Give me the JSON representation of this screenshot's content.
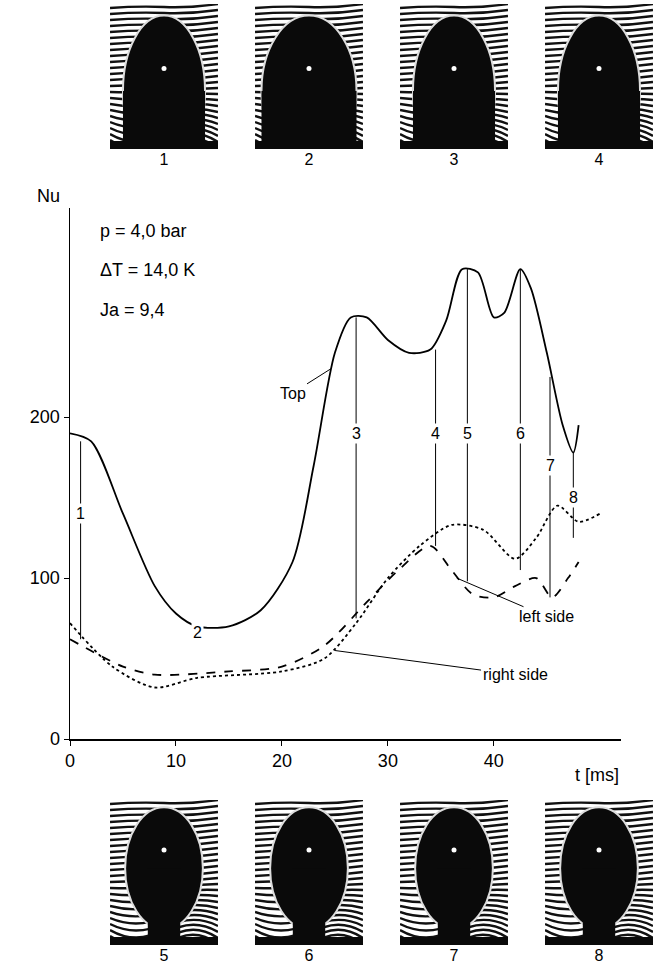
{
  "chart_data": {
    "type": "line",
    "x_label": "t [ms]",
    "y_label": "Nu",
    "annotations": [
      "p = 4,0 bar",
      "ΔT = 14,0 K",
      "Ja = 9,4"
    ],
    "xlim": [
      0,
      52
    ],
    "ylim": [
      0,
      330
    ],
    "xticks": [
      0,
      10,
      20,
      30,
      40
    ],
    "yticks": [
      0,
      100,
      200
    ],
    "grid": false,
    "series": [
      {
        "name": "Top",
        "color": "#000000",
        "line_style": "solid",
        "x": [
          0,
          2,
          5,
          8,
          10,
          12,
          15,
          18,
          21,
          23,
          25,
          26.5,
          28,
          30,
          32,
          34,
          35.5,
          37,
          38.5,
          40,
          41,
          42.5,
          43.5,
          45,
          46.5,
          47.5,
          48
        ],
        "values": [
          190,
          185,
          140,
          95,
          78,
          70,
          70,
          80,
          110,
          170,
          240,
          262,
          262,
          248,
          240,
          242,
          260,
          292,
          290,
          262,
          265,
          292,
          280,
          240,
          195,
          178,
          195
        ],
        "label_at": {
          "x": 21,
          "y": 215
        },
        "points_to": {
          "x": 24.6,
          "y": 230
        }
      },
      {
        "name": "left side",
        "color": "#000000",
        "line_style": "dash",
        "x": [
          0,
          5,
          8,
          15,
          20,
          24,
          28,
          31,
          34,
          36,
          38,
          40,
          42,
          44,
          45.5,
          47,
          48
        ],
        "values": [
          62,
          45,
          40,
          42,
          45,
          58,
          85,
          105,
          120,
          105,
          90,
          88,
          95,
          100,
          88,
          100,
          110
        ],
        "label_at": {
          "x": 45,
          "y": 76
        },
        "points_to": {
          "x": 36.5,
          "y": 100
        }
      },
      {
        "name": "right side",
        "color": "#000000",
        "line_style": "dot",
        "x": [
          0,
          4,
          8,
          12,
          20,
          24,
          27,
          30,
          33,
          36,
          39,
          42,
          44,
          46,
          48,
          50
        ],
        "values": [
          72,
          45,
          32,
          38,
          42,
          50,
          72,
          100,
          120,
          133,
          130,
          112,
          125,
          145,
          135,
          140
        ],
        "label_at": {
          "x": 42,
          "y": 40
        },
        "points_to": {
          "x": 25,
          "y": 55
        }
      }
    ],
    "markers": [
      {
        "label": "1",
        "x": 1,
        "label_y": 140,
        "y_top": 185,
        "y_bottom": 62
      },
      {
        "label": "2",
        "x": 12,
        "label_y": 66
      },
      {
        "label": "3",
        "x": 27,
        "label_y": 190,
        "y_top": 262,
        "y_bottom": 75
      },
      {
        "label": "4",
        "x": 34.5,
        "label_y": 190,
        "y_top": 242,
        "y_bottom": 120
      },
      {
        "label": "5",
        "x": 37.5,
        "label_y": 190,
        "y_top": 292,
        "y_bottom": 98
      },
      {
        "label": "6",
        "x": 42.5,
        "label_y": 190,
        "y_top": 292,
        "y_bottom": 105
      },
      {
        "label": "7",
        "x": 45.3,
        "label_y": 170,
        "y_top": 225,
        "y_bottom": 88
      },
      {
        "label": "8",
        "x": 47.5,
        "label_y": 150,
        "y_top": 178,
        "y_bottom": 125
      }
    ],
    "photo_labels": [
      "1",
      "2",
      "3",
      "4",
      "5",
      "6",
      "7",
      "8"
    ]
  }
}
